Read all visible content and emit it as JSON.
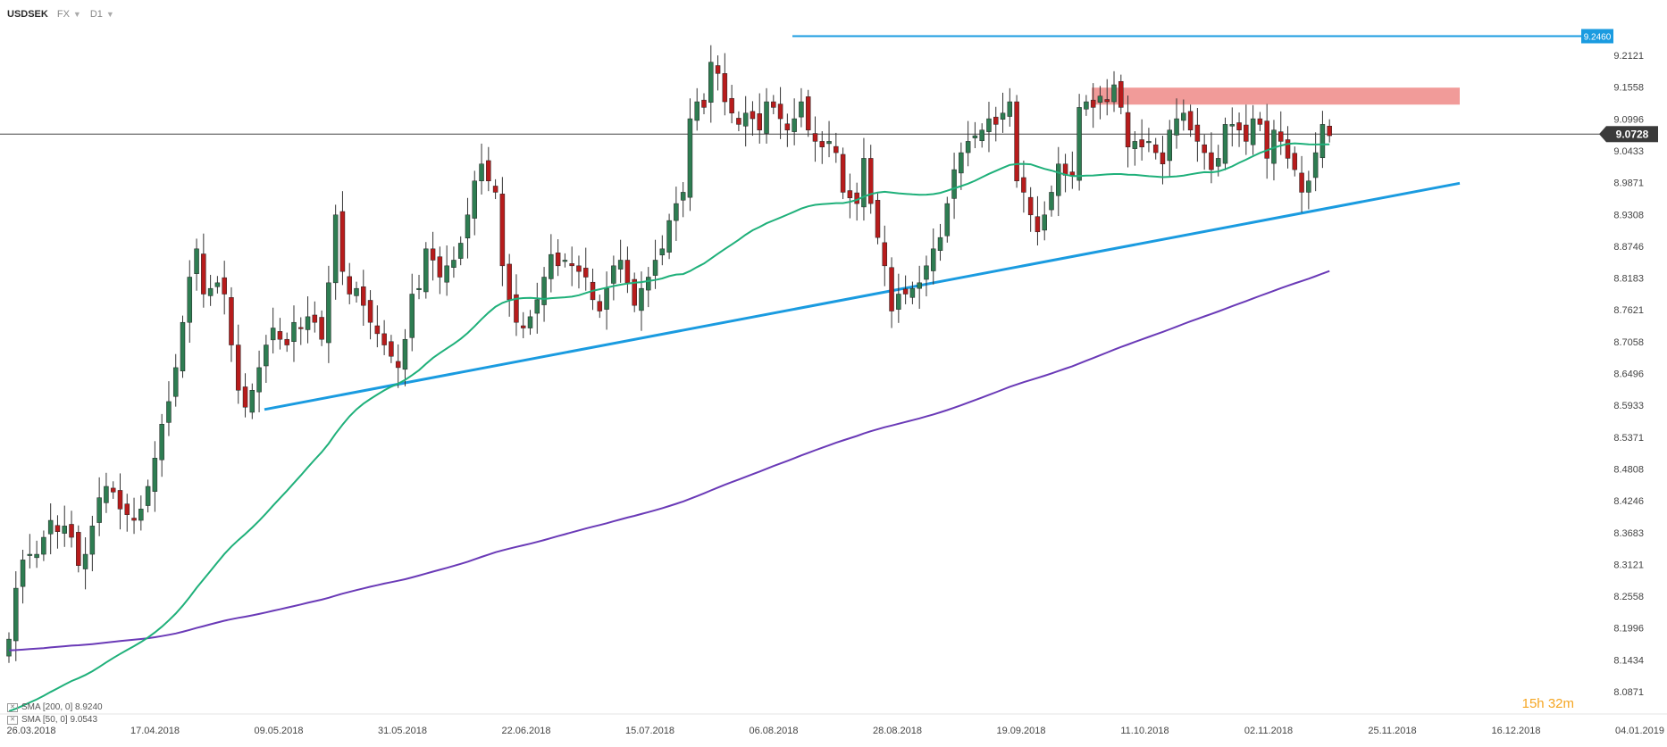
{
  "header": {
    "symbol": "USDSEK",
    "market": "FX",
    "interval": "D1"
  },
  "indicators": [
    {
      "label": "SMA [200, 0] 8.9240",
      "color": "#6a3ab7"
    },
    {
      "label": "SMA [50, 0] 9.0543",
      "color": "#1fb07a"
    }
  ],
  "timer": "15h 32m",
  "colors": {
    "up": "#2e7d52",
    "down": "#b71c1c",
    "blue": "#1a9be0",
    "zone": "#ee8a87"
  },
  "chart_data": {
    "type": "candlestick",
    "ylim": [
      8.0871,
      9.2121
    ],
    "ticks": [
      "9.2121",
      "9.1558",
      "9.0996",
      "9.0433",
      "8.9871",
      "8.9308",
      "8.8746",
      "8.8183",
      "8.7621",
      "8.7058",
      "8.6496",
      "8.5933",
      "8.5371",
      "8.4808",
      "8.4246",
      "8.3683",
      "8.3121",
      "8.2558",
      "8.1996",
      "8.1434",
      "8.0871"
    ],
    "x_labels": [
      "26.03.2018",
      "17.04.2018",
      "09.05.2018",
      "31.05.2018",
      "22.06.2018",
      "15.07.2018",
      "06.08.2018",
      "28.08.2018",
      "19.09.2018",
      "11.10.2018",
      "02.11.2018",
      "25.11.2018",
      "16.12.2018",
      "04.01.2019"
    ],
    "last_price": "9.0728",
    "resistance_label": "9.2460",
    "closes": [
      8.18,
      8.27,
      8.32,
      8.33,
      8.33,
      8.36,
      8.39,
      8.37,
      8.38,
      8.36,
      8.31,
      8.33,
      8.38,
      8.43,
      8.45,
      8.44,
      8.41,
      8.4,
      8.39,
      8.41,
      8.45,
      8.5,
      8.56,
      8.6,
      8.66,
      8.74,
      8.82,
      8.87,
      8.79,
      8.8,
      8.81,
      8.79,
      8.7,
      8.62,
      8.59,
      8.62,
      8.66,
      8.7,
      8.73,
      8.71,
      8.7,
      8.74,
      8.73,
      8.75,
      8.74,
      8.71,
      8.81,
      8.93,
      8.83,
      8.79,
      8.8,
      8.77,
      8.74,
      8.72,
      8.7,
      8.68,
      8.66,
      8.71,
      8.79,
      8.8,
      8.87,
      8.85,
      8.82,
      8.84,
      8.85,
      8.88,
      8.93,
      8.99,
      9.02,
      8.99,
      8.97,
      8.84,
      8.78,
      8.74,
      8.73,
      8.75,
      8.78,
      8.82,
      8.86,
      8.84,
      8.85,
      8.84,
      8.83,
      8.82,
      8.78,
      8.76,
      8.8,
      8.84,
      8.85,
      8.81,
      8.77,
      8.8,
      8.82,
      8.85,
      8.87,
      8.92,
      8.95,
      8.97,
      9.1,
      9.13,
      9.12,
      9.2,
      9.18,
      9.13,
      9.11,
      9.09,
      9.11,
      9.1,
      9.08,
      9.13,
      9.12,
      9.1,
      9.08,
      9.1,
      9.13,
      9.08,
      9.06,
      9.05,
      9.06,
      9.04,
      8.97,
      8.96,
      8.95,
      9.03,
      8.95,
      8.89,
      8.84,
      8.76,
      8.79,
      8.79,
      8.8,
      8.81,
      8.84,
      8.87,
      8.89,
      8.95,
      9.01,
      9.04,
      9.06,
      9.07,
      9.08,
      9.1,
      9.09,
      9.11,
      9.13,
      8.99,
      8.97,
      8.93,
      8.9,
      8.93,
      8.97,
      9.02,
      9.0,
      9.0,
      9.12,
      9.13,
      9.12,
      9.14,
      9.13,
      9.16,
      9.12,
      9.05,
      9.06,
      9.05,
      9.06,
      9.04,
      9.02,
      9.08,
      9.1,
      9.11,
      9.08,
      9.06,
      9.04,
      9.01,
      9.03,
      9.09,
      9.09,
      9.08,
      9.06,
      9.1,
      9.09,
      9.03,
      9.08,
      9.06,
      9.03,
      9.01,
      8.97,
      8.99,
      9.04,
      9.09,
      9.07
    ]
  }
}
